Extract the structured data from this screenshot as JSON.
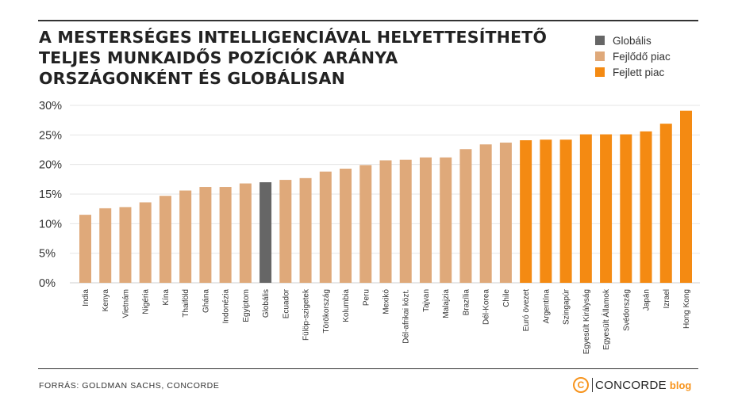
{
  "title_lines": [
    "A MESTERSÉGES INTELLIGENCIÁVAL HELYETTESÍTHETŐ",
    "TELJES MUNKAIDŐS POZÍCIÓK ARÁNYA",
    "ORSZÁGONKÉNT ÉS GLOBÁLISAN"
  ],
  "legend": [
    {
      "label": "Globális",
      "color": "#666666"
    },
    {
      "label": "Fejlődő piac",
      "color": "#dfa97a"
    },
    {
      "label": "Fejlett piac",
      "color": "#f48a12"
    }
  ],
  "source": "FORRÁS: GOLDMAN SACHS, CONCORDE",
  "logo": {
    "mark": "C",
    "name": "CONCORDE",
    "suffix": "blog"
  },
  "chart_data": {
    "type": "bar",
    "title": "A MESTERSÉGES INTELLIGENCIÁVAL HELYETTESÍTHETŐ TELJES MUNKAIDŐS POZÍCIÓK ARÁNYA ORSZÁGONKÉNT ÉS GLOBÁLISAN",
    "ylim": [
      0,
      30
    ],
    "y_ticks": [
      0,
      5,
      10,
      15,
      20,
      25,
      30
    ],
    "y_tick_labels": [
      "0%",
      "5%",
      "10%",
      "15%",
      "20%",
      "25%",
      "30%"
    ],
    "grid": true,
    "legend_position": "top-right",
    "categories": [
      "India",
      "Kenya",
      "Vietnám",
      "Nigéria",
      "Kína",
      "Thaiföld",
      "Ghána",
      "Indonézia",
      "Egyiptom",
      "Globális",
      "Ecuador",
      "Fülöp-szigetek",
      "Törökország",
      "Kolumbia",
      "Peru",
      "Mexikó",
      "Dél-afrikai közt.",
      "Tajvan",
      "Malajzia",
      "Brazília",
      "Dél-Korea",
      "Chile",
      "Euró övezet",
      "Argentína",
      "Szingapúr",
      "Egyesült Királyság",
      "Egyesült Államok",
      "Svédország",
      "Japán",
      "Izrael",
      "Hong Kong"
    ],
    "values": [
      11.5,
      12.6,
      12.8,
      13.6,
      14.7,
      15.6,
      16.2,
      16.2,
      16.8,
      17.0,
      17.4,
      17.7,
      18.8,
      19.3,
      19.9,
      20.7,
      20.8,
      21.2,
      21.2,
      22.6,
      23.4,
      23.7,
      24.1,
      24.2,
      24.2,
      25.1,
      25.1,
      25.1,
      25.6,
      26.9,
      29.1
    ],
    "groups": [
      "Fejlődő piac",
      "Fejlődő piac",
      "Fejlődő piac",
      "Fejlődő piac",
      "Fejlődő piac",
      "Fejlődő piac",
      "Fejlődő piac",
      "Fejlődő piac",
      "Fejlődő piac",
      "Globális",
      "Fejlődő piac",
      "Fejlődő piac",
      "Fejlődő piac",
      "Fejlődő piac",
      "Fejlődő piac",
      "Fejlődő piac",
      "Fejlődő piac",
      "Fejlődő piac",
      "Fejlődő piac",
      "Fejlődő piac",
      "Fejlődő piac",
      "Fejlődő piac",
      "Fejlett piac",
      "Fejlett piac",
      "Fejlett piac",
      "Fejlett piac",
      "Fejlett piac",
      "Fejlett piac",
      "Fejlett piac",
      "Fejlett piac",
      "Fejlett piac"
    ]
  }
}
